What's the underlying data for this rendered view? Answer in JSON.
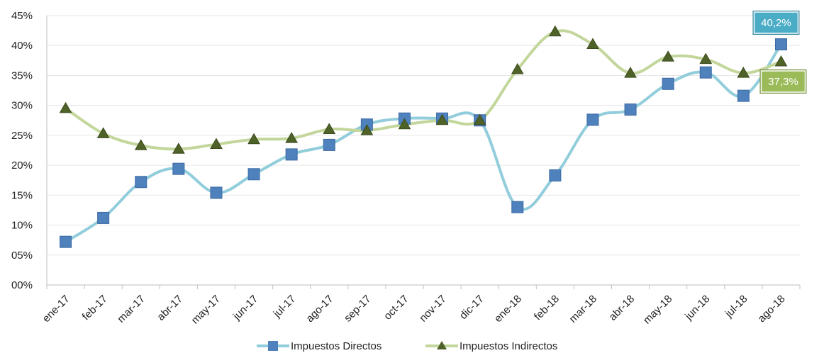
{
  "chart_data": {
    "type": "line",
    "categories": [
      "ene-17",
      "feb-17",
      "mar-17",
      "abr-17",
      "may-17",
      "jun-17",
      "jul-17",
      "ago-17",
      "sep-17",
      "oct-17",
      "nov-17",
      "dic-17",
      "ene-18",
      "feb-18",
      "mar-18",
      "abr-18",
      "may-18",
      "jun-18",
      "jul-18",
      "ago-18"
    ],
    "series": [
      {
        "name": "Impuestos Directos",
        "color": "#92CDDC",
        "marker_color": "#4F81BD",
        "marker": "square",
        "values": [
          7.2,
          11.2,
          17.2,
          19.4,
          15.4,
          18.5,
          21.8,
          23.4,
          26.8,
          27.8,
          27.8,
          27.5,
          13.0,
          18.3,
          27.6,
          29.3,
          33.6,
          35.5,
          31.6,
          40.2
        ]
      },
      {
        "name": "Impuestos Indirectos",
        "color": "#C3D69B",
        "marker_color": "#4F6228",
        "marker": "triangle",
        "values": [
          29.5,
          25.3,
          23.3,
          22.7,
          23.5,
          24.3,
          24.5,
          26.0,
          25.8,
          26.8,
          27.5,
          27.5,
          36.0,
          42.3,
          40.2,
          35.4,
          38.1,
          37.7,
          35.4,
          37.3
        ]
      }
    ],
    "ylim": [
      0,
      45
    ],
    "yticks": [
      "00%",
      "05%",
      "10%",
      "15%",
      "20%",
      "25%",
      "30%",
      "35%",
      "40%",
      "45%"
    ],
    "grid": true,
    "legend_position": "bottom",
    "annotations": [
      {
        "series": 0,
        "index": 19,
        "text": "40,2%",
        "bg": "#4BACC6",
        "border": "#31859C"
      },
      {
        "series": 1,
        "index": 19,
        "text": "37,3%",
        "bg": "#9BBB59",
        "border": "#76923C"
      }
    ]
  }
}
